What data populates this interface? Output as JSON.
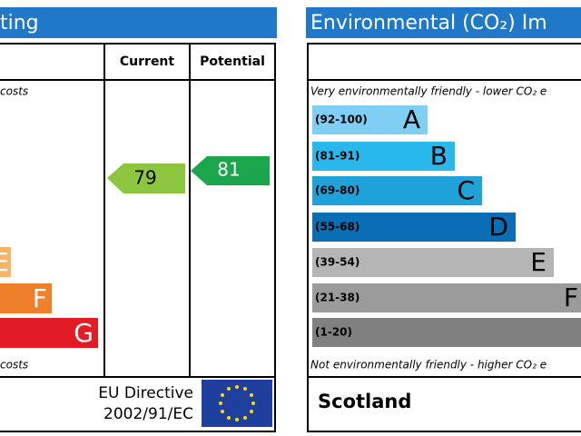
{
  "left": {
    "title": "ting",
    "columns": [
      "Current",
      "Potential"
    ],
    "top_note": "costs",
    "bottom_note": "costs",
    "bands": [
      {
        "letter": "E"
      },
      {
        "letter": "F"
      },
      {
        "letter": "G"
      }
    ],
    "current": 79,
    "potential": 81,
    "directive": [
      "EU Directive",
      "2002/91/EC"
    ]
  },
  "right": {
    "title": "Environmental (CO₂) Im",
    "top_note": "Very environmentally friendly - lower CO₂ e",
    "bands": [
      {
        "range": "(92-100)",
        "letter": "A"
      },
      {
        "range": "(81-91)",
        "letter": "B"
      },
      {
        "range": "(69-80)",
        "letter": "C"
      },
      {
        "range": "(55-68)",
        "letter": "D"
      },
      {
        "range": "(39-54)",
        "letter": "E"
      },
      {
        "range": "(21-38)",
        "letter": "F"
      },
      {
        "range": "(1-20)"
      }
    ],
    "bottom_note": "Not environmentally friendly - higher CO₂ e",
    "region": "Scotland"
  }
}
